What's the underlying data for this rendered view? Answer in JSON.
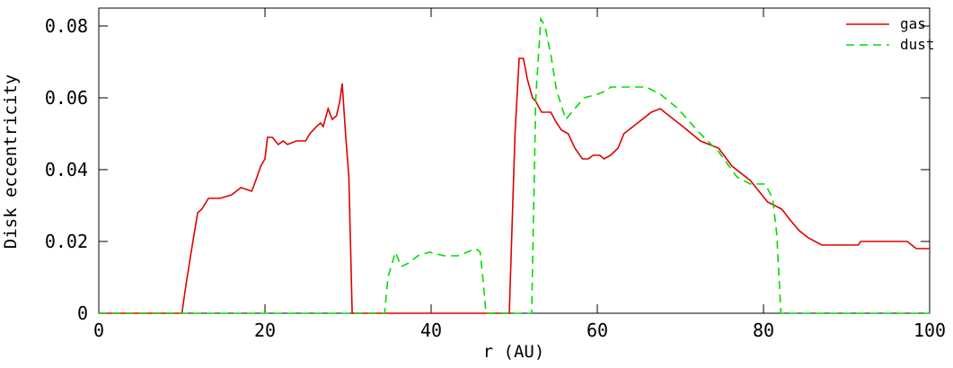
{
  "chart_data": {
    "type": "line",
    "xlabel": "r (AU)",
    "ylabel": "Disk eccentricity",
    "xlim": [
      0,
      100
    ],
    "ylim": [
      0,
      0.08
    ],
    "xticks": [
      0,
      20,
      40,
      60,
      80,
      100
    ],
    "yticks": [
      0,
      0.02,
      0.04,
      0.06,
      0.08
    ],
    "legend": "upper right",
    "series": [
      {
        "name": "gas",
        "color": "#e00000",
        "dash": false,
        "x": [
          0,
          10,
          10.5,
          11.4,
          11.9,
          12.4,
          13.2,
          14.6,
          16,
          17.1,
          18.4,
          18.9,
          19.5,
          20,
          20.3,
          20.9,
          21.6,
          22.2,
          22.7,
          23.8,
          24.9,
          25.4,
          26.2,
          26.7,
          27,
          27.6,
          28.1,
          28.6,
          29,
          29.3,
          29.7,
          30.1,
          30.5,
          49.4,
          50.1,
          50.6,
          51.1,
          51.6,
          52.2,
          52.6,
          53.3,
          54.4,
          55.1,
          55.7,
          56.5,
          57.3,
          58.2,
          58.9,
          59.5,
          60.3,
          60.8,
          61.6,
          62.5,
          63.2,
          64.3,
          65.4,
          66.5,
          67.6,
          68.1,
          69.2,
          70.3,
          72.4,
          74.6,
          76.2,
          78.4,
          80.5,
          82.2,
          83.2,
          84.3,
          85.4,
          87,
          91.4,
          91.7,
          97.3,
          98.4,
          100
        ],
        "values": [
          0,
          0,
          0.008,
          0.021,
          0.028,
          0.029,
          0.032,
          0.032,
          0.033,
          0.035,
          0.034,
          0.037,
          0.041,
          0.043,
          0.049,
          0.049,
          0.047,
          0.048,
          0.047,
          0.048,
          0.048,
          0.05,
          0.052,
          0.053,
          0.052,
          0.057,
          0.054,
          0.055,
          0.059,
          0.064,
          0.05,
          0.038,
          0,
          0,
          0.05,
          0.071,
          0.071,
          0.065,
          0.06,
          0.059,
          0.056,
          0.056,
          0.053,
          0.051,
          0.05,
          0.046,
          0.043,
          0.043,
          0.044,
          0.044,
          0.043,
          0.044,
          0.046,
          0.05,
          0.052,
          0.054,
          0.056,
          0.057,
          0.056,
          0.054,
          0.052,
          0.048,
          0.046,
          0.041,
          0.037,
          0.031,
          0.029,
          0.026,
          0.023,
          0.021,
          0.019,
          0.019,
          0.02,
          0.02,
          0.018,
          0.018
        ]
      },
      {
        "name": "dust",
        "color": "#00dd00",
        "dash": true,
        "x": [
          0,
          34.4,
          34.8,
          35.7,
          36.4,
          37.3,
          38.4,
          39.8,
          41.6,
          43.2,
          44.3,
          45.4,
          45.9,
          46.3,
          46.6,
          52.1,
          52.6,
          53.2,
          53.7,
          54.4,
          55.1,
          56.2,
          57.3,
          58.4,
          60,
          61.1,
          61.6,
          65.9,
          67.6,
          69.7,
          72.4,
          74.6,
          76.8,
          78.4,
          80.2,
          81.1,
          81.6,
          82.1,
          100
        ],
        "values": [
          0,
          0,
          0.01,
          0.017,
          0.013,
          0.014,
          0.016,
          0.017,
          0.016,
          0.016,
          0.017,
          0.018,
          0.017,
          0.008,
          0,
          0,
          0.06,
          0.082,
          0.08,
          0.072,
          0.062,
          0.054,
          0.057,
          0.06,
          0.061,
          0.062,
          0.063,
          0.063,
          0.061,
          0.057,
          0.05,
          0.045,
          0.038,
          0.036,
          0.036,
          0.032,
          0.022,
          0,
          0
        ]
      }
    ]
  }
}
